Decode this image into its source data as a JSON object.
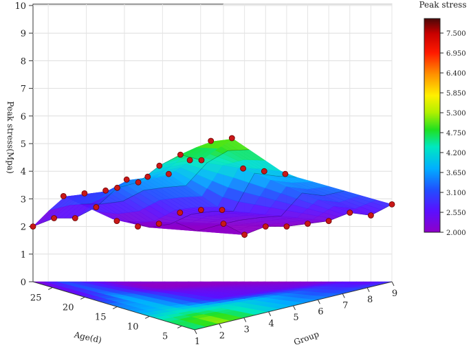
{
  "chart_data": {
    "type": "surface3d",
    "zlabel": "Peak stress(Mpa)",
    "xlabel": "Age(d)",
    "ylabel": "Group",
    "zlim": [
      0,
      10
    ],
    "z_ticks": [
      "0",
      "1",
      "2",
      "3",
      "4",
      "5",
      "6",
      "7",
      "8",
      "9",
      "10"
    ],
    "age_ticks": [
      "5",
      "10",
      "15",
      "20",
      "25"
    ],
    "group_ticks": [
      "1",
      "2",
      "3",
      "4",
      "5",
      "6",
      "7",
      "8",
      "9"
    ],
    "ages": [
      3,
      7,
      14,
      28
    ],
    "groups": [
      1,
      2,
      3,
      4,
      5,
      6,
      7,
      8,
      9
    ],
    "values": [
      [
        2.0,
        2.3,
        2.3,
        2.7,
        3.4,
        3.6,
        4.2,
        4.6,
        4.4
      ],
      [
        3.1,
        3.2,
        3.3,
        3.7,
        3.8,
        3.9,
        4.4,
        5.1,
        5.2
      ],
      [
        2.2,
        2.0,
        2.1,
        2.5,
        2.6,
        2.6,
        4.1,
        4.0,
        3.9
      ],
      [
        2.1,
        1.7,
        2.0,
        2.0,
        2.1,
        2.2,
        2.5,
        2.4,
        2.8
      ]
    ],
    "colorbar": {
      "title": "Peak stress",
      "min": 2.0,
      "max": 7.9,
      "ticks": [
        "2.000",
        "2.550",
        "3.100",
        "3.650",
        "4.200",
        "4.750",
        "5.300",
        "5.850",
        "6.400",
        "6.950",
        "7.500"
      ]
    },
    "grid": true
  }
}
